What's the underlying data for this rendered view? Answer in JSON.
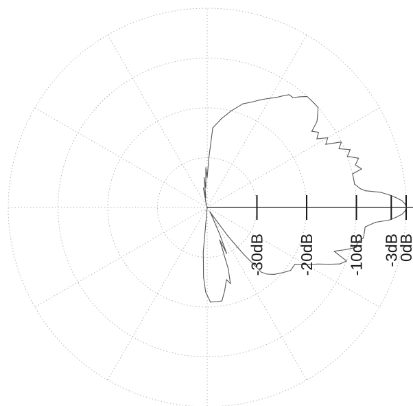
{
  "chart_data": {
    "type": "polar",
    "title": "",
    "scale": "dB",
    "r_range_db": [
      -40,
      0
    ],
    "grid": true,
    "radial_ticks": [
      {
        "label": "-30dB",
        "db": -30
      },
      {
        "label": "-20dB",
        "db": -20
      },
      {
        "label": "-10dB",
        "db": -10
      },
      {
        "label": "-3dB",
        "db": -3
      },
      {
        "label": "0dB",
        "db": 0
      }
    ],
    "series": [
      {
        "color": "#555555",
        "points_deg_db": [
          [
            -130,
            -40
          ],
          [
            -112,
            -40
          ],
          [
            -100,
            -40
          ],
          [
            -95,
            -31
          ],
          [
            -93,
            -26
          ],
          [
            -91,
            -23
          ],
          [
            -88,
            -21
          ],
          [
            -84,
            -21
          ],
          [
            -81,
            -21
          ],
          [
            -78,
            -23
          ],
          [
            -75,
            -25
          ],
          [
            -73,
            -24
          ],
          [
            -71,
            -27
          ],
          [
            -69,
            -33
          ],
          [
            -67,
            -30
          ],
          [
            -65,
            -34
          ],
          [
            -64,
            -36
          ],
          [
            -61,
            -38
          ],
          [
            -58,
            -39
          ],
          [
            -56,
            -38
          ],
          [
            -54,
            -33
          ],
          [
            -52,
            -28
          ],
          [
            -50,
            -23
          ],
          [
            -48,
            -22
          ],
          [
            -45,
            -21
          ],
          [
            -41,
            -20
          ],
          [
            -37,
            -19
          ],
          [
            -33,
            -19
          ],
          [
            -30,
            -17
          ],
          [
            -27,
            -15
          ],
          [
            -25,
            -13
          ],
          [
            -23,
            -11
          ],
          [
            -21,
            -10
          ],
          [
            -19,
            -13
          ],
          [
            -17,
            -11
          ],
          [
            -15,
            -9
          ],
          [
            -13,
            -9
          ],
          [
            -11,
            -8
          ],
          [
            -9,
            -8
          ],
          [
            -7,
            -8
          ],
          [
            -5,
            -6
          ],
          [
            -4,
            -3.4
          ],
          [
            -3,
            -2
          ],
          [
            -2,
            -0.8
          ],
          [
            -1,
            -0.2
          ],
          [
            0,
            0
          ],
          [
            1,
            -0.2
          ],
          [
            2,
            -0.8
          ],
          [
            3,
            -2
          ],
          [
            4,
            -3.4
          ],
          [
            5,
            -5
          ],
          [
            6,
            -8
          ],
          [
            7,
            -9
          ],
          [
            9,
            -10
          ],
          [
            11,
            -10
          ],
          [
            13,
            -10
          ],
          [
            14,
            -8
          ],
          [
            16,
            -9
          ],
          [
            18,
            -8
          ],
          [
            20,
            -10
          ],
          [
            22,
            -9
          ],
          [
            24,
            -11
          ],
          [
            26,
            -10
          ],
          [
            28,
            -13
          ],
          [
            30,
            -12
          ],
          [
            32,
            -14
          ],
          [
            34,
            -13
          ],
          [
            36,
            -14
          ],
          [
            38,
            -12
          ],
          [
            40,
            -11
          ],
          [
            42,
            -10
          ],
          [
            44,
            -10
          ],
          [
            46,
            -10
          ],
          [
            48,
            -10
          ],
          [
            50,
            -11
          ],
          [
            52,
            -12
          ],
          [
            54,
            -12
          ],
          [
            56,
            -13
          ],
          [
            58,
            -14
          ],
          [
            61,
            -15
          ],
          [
            64,
            -16
          ],
          [
            67,
            -17
          ],
          [
            71,
            -18
          ],
          [
            76,
            -20
          ],
          [
            81,
            -22
          ],
          [
            86,
            -24
          ],
          [
            88,
            -30
          ],
          [
            90,
            -34
          ],
          [
            92,
            -32
          ],
          [
            94,
            -36
          ],
          [
            96,
            -34
          ],
          [
            98,
            -38
          ],
          [
            101,
            -36
          ],
          [
            104,
            -39
          ],
          [
            108,
            -40
          ],
          [
            130,
            -40
          ],
          [
            180,
            -40
          ],
          [
            230,
            -40
          ]
        ]
      }
    ]
  }
}
